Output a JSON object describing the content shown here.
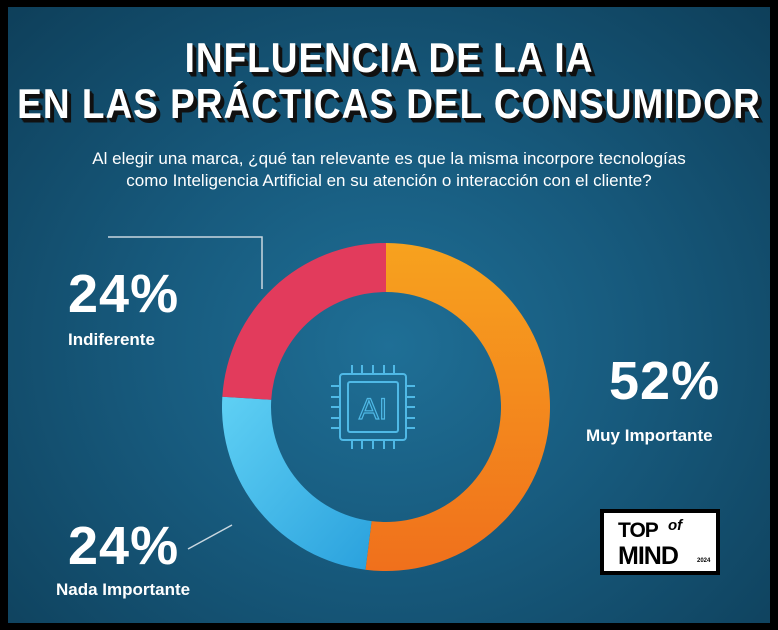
{
  "title_line1": "INFLUENCIA DE LA IA",
  "title_line2": "EN LAS PRÁCTICAS DEL CONSUMIDOR",
  "subtitle_line1": "Al elegir una marca, ¿qué tan relevante es que la misma incorpore tecnologías",
  "subtitle_line2": "como Inteligencia Artificial en su atención o interacción con el cliente?",
  "center_icon": {
    "name": "ai-chip-icon",
    "text": "AI"
  },
  "chart_data": {
    "type": "pie",
    "donut": true,
    "categories": [
      "Muy Importante",
      "Nada Importante",
      "Indiferente"
    ],
    "values": [
      52,
      24,
      24
    ],
    "value_labels": [
      "52%",
      "24%",
      "24%"
    ],
    "colors": [
      "#f68a1f",
      "#3fb6e8",
      "#e23b5c"
    ]
  },
  "logo": {
    "top": "TOP",
    "of": "of",
    "mind": "MIND",
    "year": "2024"
  },
  "colors": {
    "background": "#175a7d",
    "text": "#ffffff",
    "leader_line": "#c9d7e0"
  }
}
